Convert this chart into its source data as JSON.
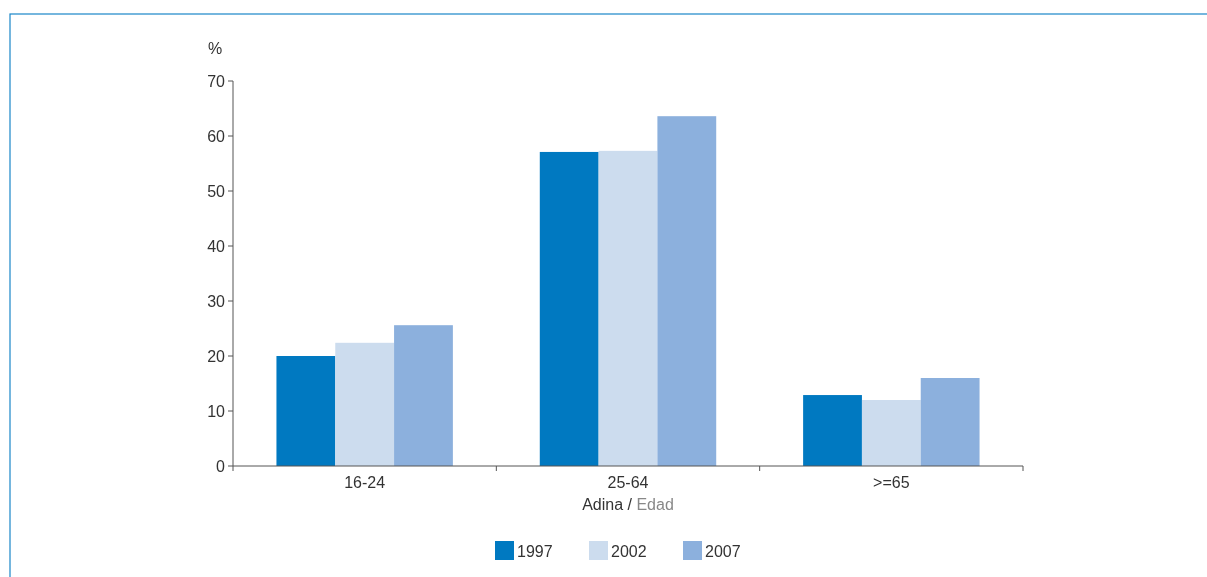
{
  "chart_data": {
    "type": "bar",
    "ylabel": "%",
    "xlabel": "Adina / Edad",
    "categories": [
      "16-24",
      "25-64",
      ">=65"
    ],
    "series": [
      {
        "name": "1997",
        "color": "#0079c1",
        "values": [
          20,
          57.1,
          12.9
        ]
      },
      {
        "name": "2002",
        "color": "#ccdcee",
        "values": [
          22.4,
          57.3,
          12
        ]
      },
      {
        "name": "2007",
        "color": "#8cb0dd",
        "values": [
          25.6,
          63.6,
          16
        ]
      }
    ],
    "ylim": [
      0,
      70
    ],
    "yticks": [
      0,
      10,
      20,
      30,
      40,
      50,
      60,
      70
    ],
    "grid": false,
    "legend": "bottom"
  }
}
